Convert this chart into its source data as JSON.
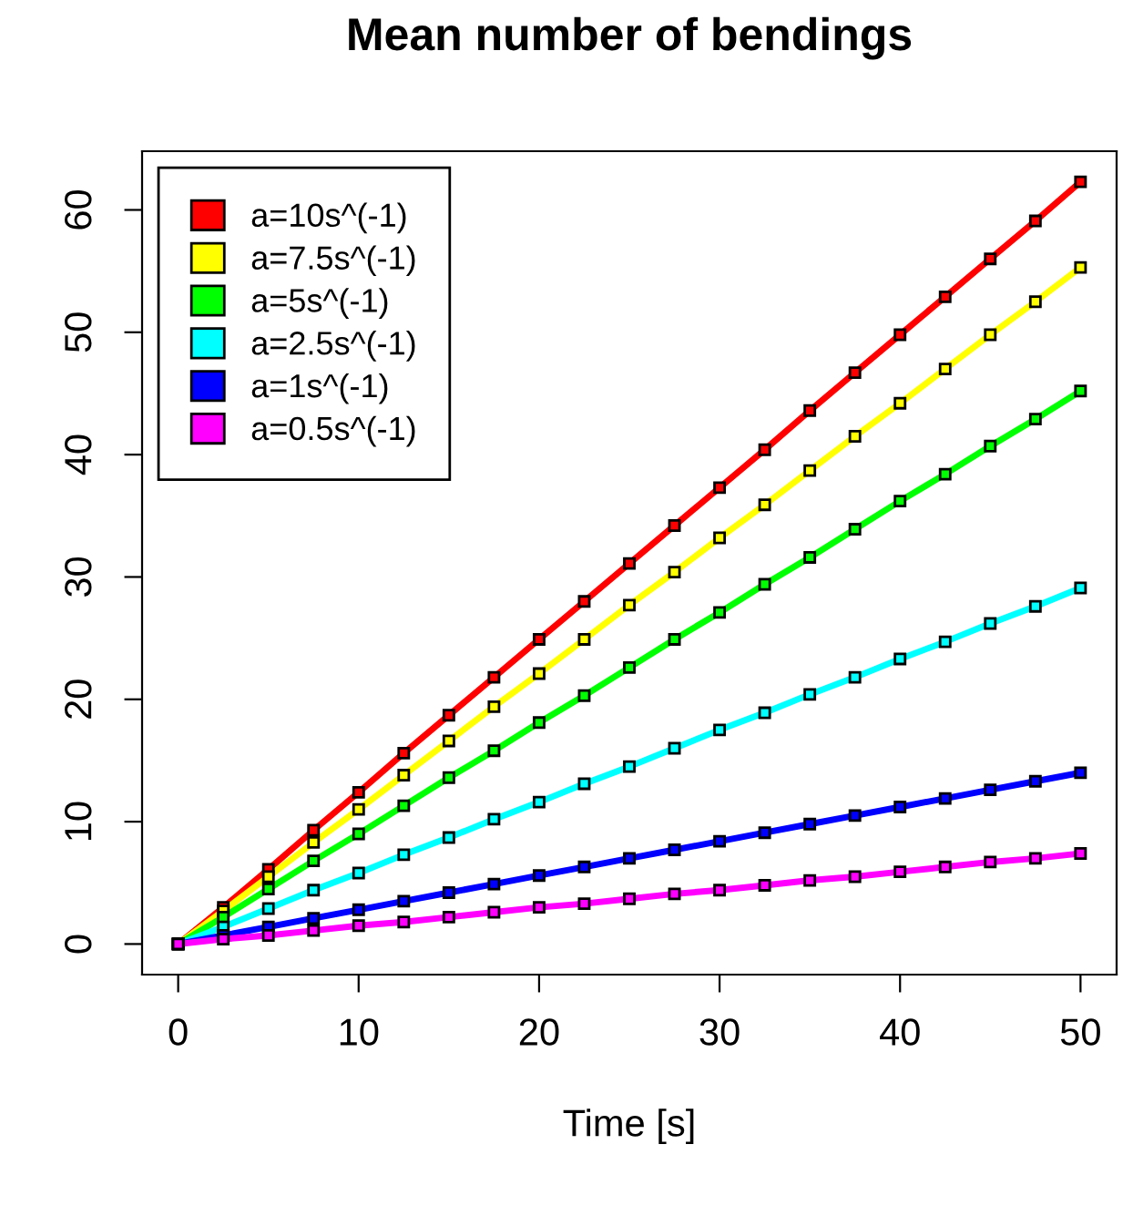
{
  "chart_data": {
    "type": "line",
    "title": "Mean number of bendings",
    "xlabel": "Time [s]",
    "x": [
      0,
      2.5,
      5,
      7.5,
      10,
      12.5,
      15,
      17.5,
      20,
      22.5,
      25,
      27.5,
      30,
      32.5,
      35,
      37.5,
      40,
      42.5,
      45,
      47.5,
      50
    ],
    "series": [
      {
        "name": "a=10s^(-1)",
        "color": "#ff0000",
        "values": [
          0,
          3.0,
          6.1,
          9.3,
          12.4,
          15.6,
          18.7,
          21.8,
          24.9,
          28.0,
          31.1,
          34.2,
          37.3,
          40.4,
          43.6,
          46.7,
          49.8,
          52.9,
          56.0,
          59.1,
          62.3
        ]
      },
      {
        "name": "a=7.5s^(-1)",
        "color": "#ffff00",
        "values": [
          0,
          2.7,
          5.5,
          8.3,
          11.0,
          13.8,
          16.6,
          19.4,
          22.1,
          24.9,
          27.7,
          30.4,
          33.2,
          35.9,
          38.7,
          41.5,
          44.2,
          47.0,
          49.8,
          52.5,
          55.3
        ]
      },
      {
        "name": "a=5s^(-1)",
        "color": "#00ff00",
        "values": [
          0,
          2.2,
          4.5,
          6.8,
          9.0,
          11.3,
          13.6,
          15.8,
          18.1,
          20.3,
          22.6,
          24.9,
          27.1,
          29.4,
          31.6,
          33.9,
          36.2,
          38.4,
          40.7,
          42.9,
          45.2
        ]
      },
      {
        "name": "a=2.5s^(-1)",
        "color": "#00ffff",
        "values": [
          0,
          1.4,
          2.9,
          4.4,
          5.8,
          7.3,
          8.7,
          10.2,
          11.6,
          13.1,
          14.5,
          16.0,
          17.5,
          18.9,
          20.4,
          21.8,
          23.3,
          24.7,
          26.2,
          27.6,
          29.1
        ]
      },
      {
        "name": "a=1s^(-1)",
        "color": "#0000ff",
        "values": [
          0,
          0.7,
          1.4,
          2.1,
          2.8,
          3.5,
          4.2,
          4.9,
          5.6,
          6.3,
          7.0,
          7.7,
          8.4,
          9.1,
          9.8,
          10.5,
          11.2,
          11.9,
          12.6,
          13.3,
          14.0
        ]
      },
      {
        "name": "a=0.5s^(-1)",
        "color": "#ff00ff",
        "values": [
          0,
          0.4,
          0.7,
          1.1,
          1.5,
          1.8,
          2.2,
          2.6,
          3.0,
          3.3,
          3.7,
          4.1,
          4.4,
          4.8,
          5.2,
          5.5,
          5.9,
          6.3,
          6.7,
          7.0,
          7.4
        ]
      }
    ],
    "xlim": [
      -2,
      52
    ],
    "ylim": [
      -2.5,
      64.8
    ],
    "xticks": [
      0,
      10,
      20,
      30,
      40,
      50
    ],
    "yticks": [
      0,
      10,
      20,
      30,
      40,
      50,
      60
    ],
    "grid": false,
    "legend": "top left",
    "marker": "square",
    "line_style": "solid"
  }
}
